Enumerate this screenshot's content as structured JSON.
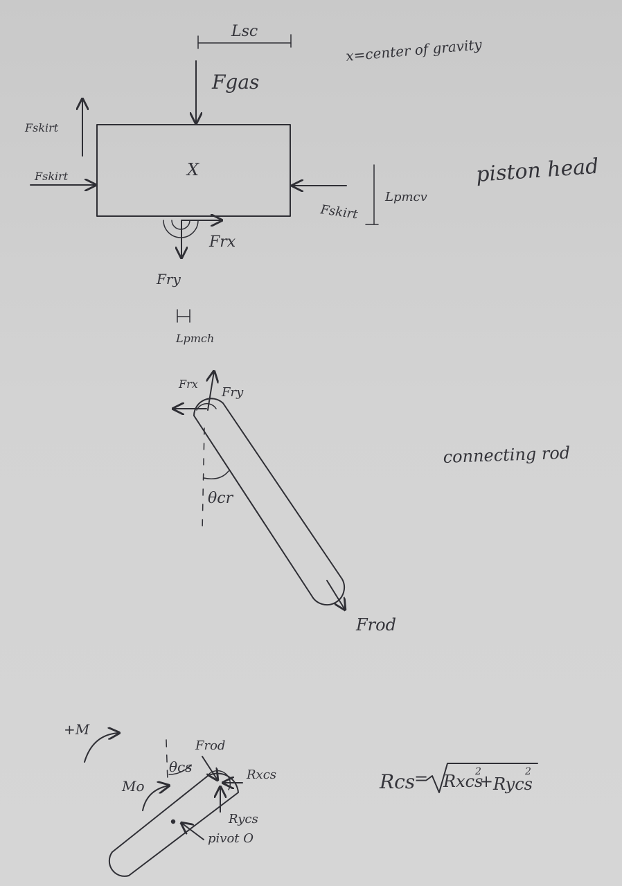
{
  "labels": {
    "l_sc": "Lsc",
    "cog_note": "x=center of gravity",
    "f_gas": "Fgas",
    "f_skirt_up": "Fskirt",
    "f_skirt_left": "Fskirt",
    "cog_mark": "X",
    "f_skirt_right": "Fskirt",
    "l_pmcv": "Lpmcv",
    "piston_head": "piston head",
    "f_rx": "Frx",
    "f_ry": "Fry",
    "l_pmch": "Lpmch",
    "rod_f_rx": "Frx",
    "rod_f_ry": "Fry",
    "connecting_rod": "connecting rod",
    "theta_cr": "θcr",
    "f_rod": "Frod",
    "plus_m": "+M",
    "f_rod_crank": "Frod",
    "theta_cs": "θcs",
    "m_o": "Mo",
    "r_xcs": "Rxcs",
    "r_ycs": "Rycs",
    "pivot": "pivot O"
  },
  "equation": {
    "lhs": "Rcs",
    "equals": "=",
    "rad1": "Rxcs",
    "exp1": "2",
    "plus": "+",
    "rad2": "Rycs",
    "exp2": "2"
  }
}
